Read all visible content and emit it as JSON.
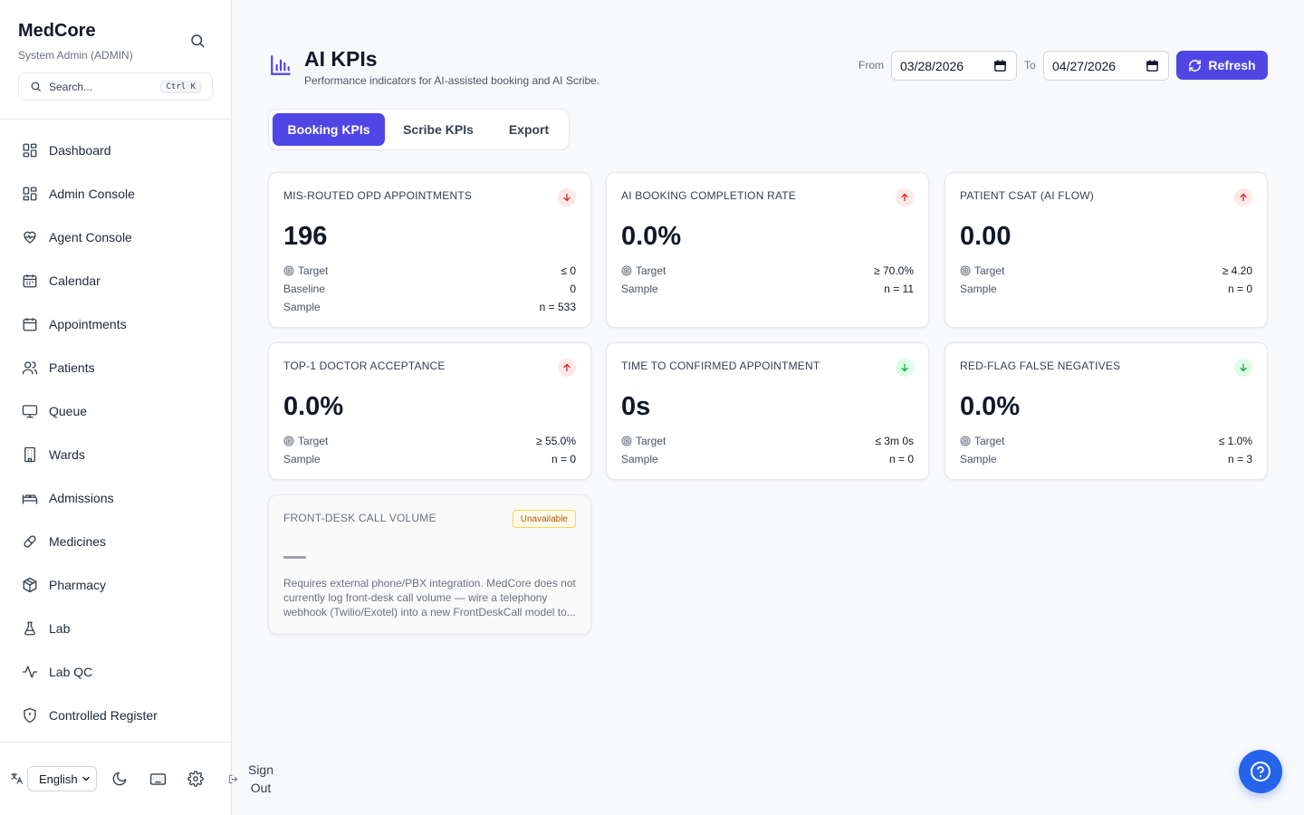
{
  "app": {
    "name": "MedCore",
    "role": "System Admin (ADMIN)"
  },
  "search": {
    "placeholder": "Search...",
    "shortcut": "Ctrl K"
  },
  "sidebar": {
    "items": [
      {
        "label": "Dashboard",
        "icon": "dashboard-icon"
      },
      {
        "label": "Admin Console",
        "icon": "grid-icon"
      },
      {
        "label": "Agent Console",
        "icon": "heart-pulse-icon"
      },
      {
        "label": "Calendar",
        "icon": "calendar-icon"
      },
      {
        "label": "Appointments",
        "icon": "calendar-icon"
      },
      {
        "label": "Patients",
        "icon": "users-icon"
      },
      {
        "label": "Queue",
        "icon": "monitor-icon"
      },
      {
        "label": "Wards",
        "icon": "building-icon"
      },
      {
        "label": "Admissions",
        "icon": "bed-icon"
      },
      {
        "label": "Medicines",
        "icon": "pill-icon"
      },
      {
        "label": "Pharmacy",
        "icon": "package-icon"
      },
      {
        "label": "Lab",
        "icon": "flask-icon"
      },
      {
        "label": "Lab QC",
        "icon": "activity-icon"
      },
      {
        "label": "Controlled Register",
        "icon": "shield-icon"
      }
    ]
  },
  "footer": {
    "language": "English",
    "signout": "Sign Out"
  },
  "header": {
    "title": "AI KPIs",
    "subtitle": "Performance indicators for AI-assisted booking and AI Scribe.",
    "from_label": "From",
    "from_value": "03/28/2026",
    "to_label": "To",
    "to_value": "04/27/2026",
    "refresh_label": "Refresh"
  },
  "tabs": [
    "Booking KPIs",
    "Scribe KPIs",
    "Export"
  ],
  "cards": [
    {
      "title": "MIS-ROUTED OPD APPOINTMENTS",
      "trend": "down",
      "trend_color": "#dc2626",
      "value": "196",
      "rows": [
        {
          "label": "Target",
          "value": "≤ 0"
        },
        {
          "label": "Baseline",
          "value": "0"
        },
        {
          "label": "Sample",
          "value": "n = 533"
        }
      ]
    },
    {
      "title": "AI BOOKING COMPLETION RATE",
      "trend": "up",
      "trend_color": "#dc2626",
      "value": "0.0%",
      "rows": [
        {
          "label": "Target",
          "value": "≥ 70.0%"
        },
        {
          "label": "Sample",
          "value": "n = 11"
        }
      ]
    },
    {
      "title": "PATIENT CSAT (AI FLOW)",
      "trend": "up",
      "trend_color": "#dc2626",
      "value": "0.00",
      "rows": [
        {
          "label": "Target",
          "value": "≥ 4.20"
        },
        {
          "label": "Sample",
          "value": "n = 0"
        }
      ]
    },
    {
      "title": "TOP-1 DOCTOR ACCEPTANCE",
      "trend": "up",
      "trend_color": "#dc2626",
      "value": "0.0%",
      "rows": [
        {
          "label": "Target",
          "value": "≥ 55.0%"
        },
        {
          "label": "Sample",
          "value": "n = 0"
        }
      ]
    },
    {
      "title": "TIME TO CONFIRMED APPOINTMENT",
      "trend": "down",
      "trend_color": "#16a34a",
      "value": "0s",
      "rows": [
        {
          "label": "Target",
          "value": "≤ 3m 0s"
        },
        {
          "label": "Sample",
          "value": "n = 0"
        }
      ]
    },
    {
      "title": "RED-FLAG FALSE NEGATIVES",
      "trend": "down",
      "trend_color": "#16a34a",
      "value": "0.0%",
      "rows": [
        {
          "label": "Target",
          "value": "≤ 1.0%"
        },
        {
          "label": "Sample",
          "value": "n = 3"
        }
      ]
    }
  ],
  "unavailable_card": {
    "title": "FRONT-DESK CALL VOLUME",
    "badge": "Unavailable",
    "note": "Requires external phone/PBX integration. MedCore does not currently log front-desk call volume — wire a telephony webhook (Twilio/Exotel) into a new FrontDeskCall model to..."
  },
  "colors": {
    "accent": "#4f46e5",
    "help": "#2563eb"
  }
}
